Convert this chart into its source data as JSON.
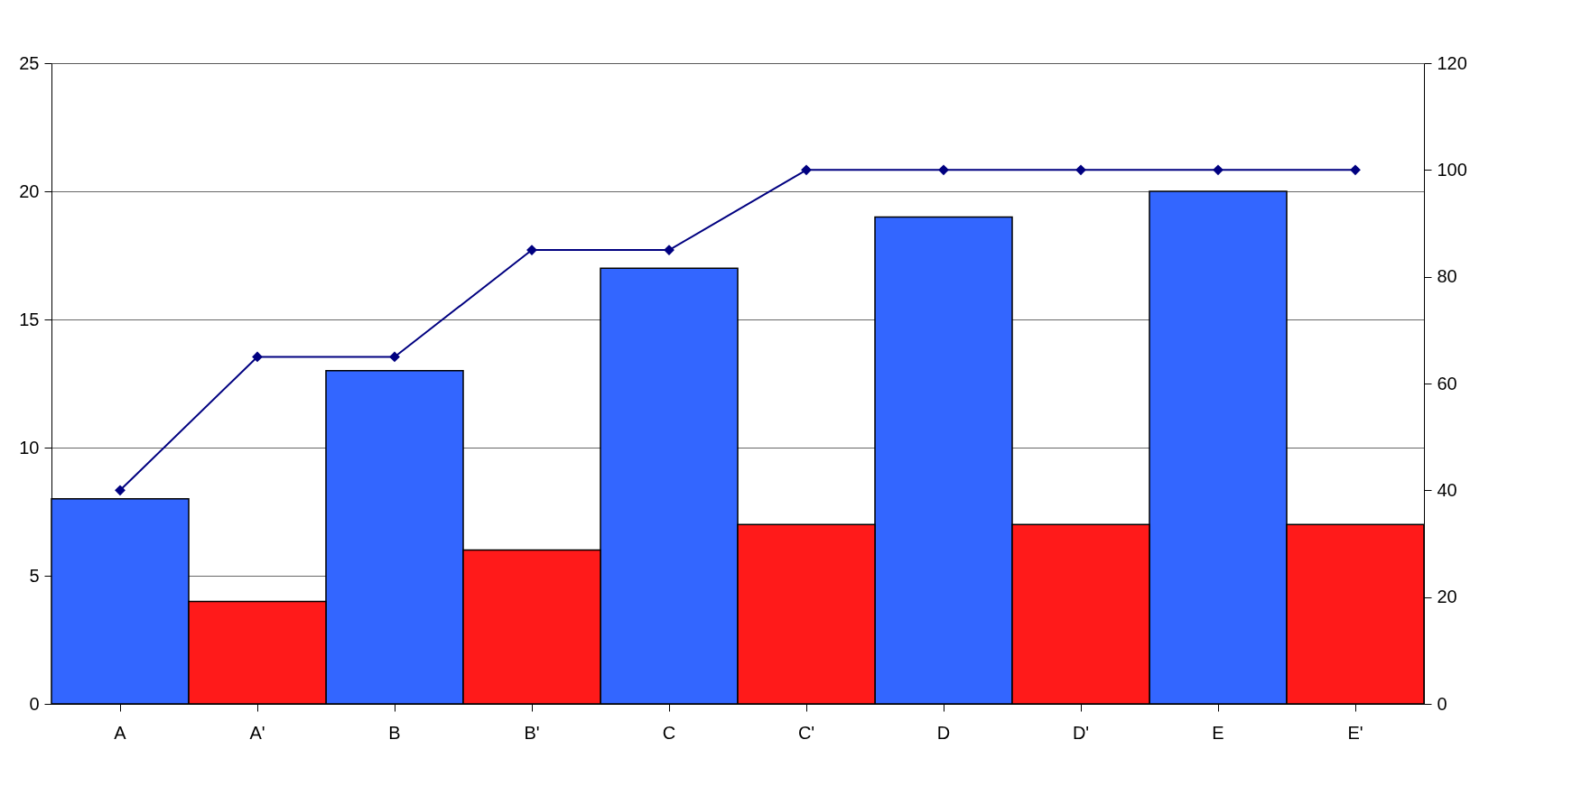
{
  "chart_data": {
    "type": "bar",
    "categories": [
      "A",
      "A'",
      "B",
      "B'",
      "C",
      "C'",
      "D",
      "D'",
      "E",
      "E'"
    ],
    "series": [
      {
        "values": [
          8,
          4,
          13,
          6,
          17,
          7,
          19,
          7,
          20,
          7
        ],
        "colors": [
          "#3366ff",
          "#ff1a1a",
          "#3366ff",
          "#ff1a1a",
          "#3366ff",
          "#ff1a1a",
          "#3366ff",
          "#ff1a1a",
          "#3366ff",
          "#ff1a1a"
        ]
      },
      {
        "type": "line",
        "axis": "y2",
        "color": "#000080",
        "marker": "diamond",
        "values": [
          40,
          65,
          65,
          85,
          85,
          100,
          100,
          100,
          100,
          100
        ]
      }
    ],
    "ylim": [
      0,
      25
    ],
    "yticks": [
      0,
      5,
      10,
      15,
      20,
      25
    ],
    "y2lim": [
      0,
      120
    ],
    "y2ticks": [
      0,
      20,
      40,
      60,
      80,
      100,
      120
    ],
    "grid": "y",
    "legend": false
  }
}
